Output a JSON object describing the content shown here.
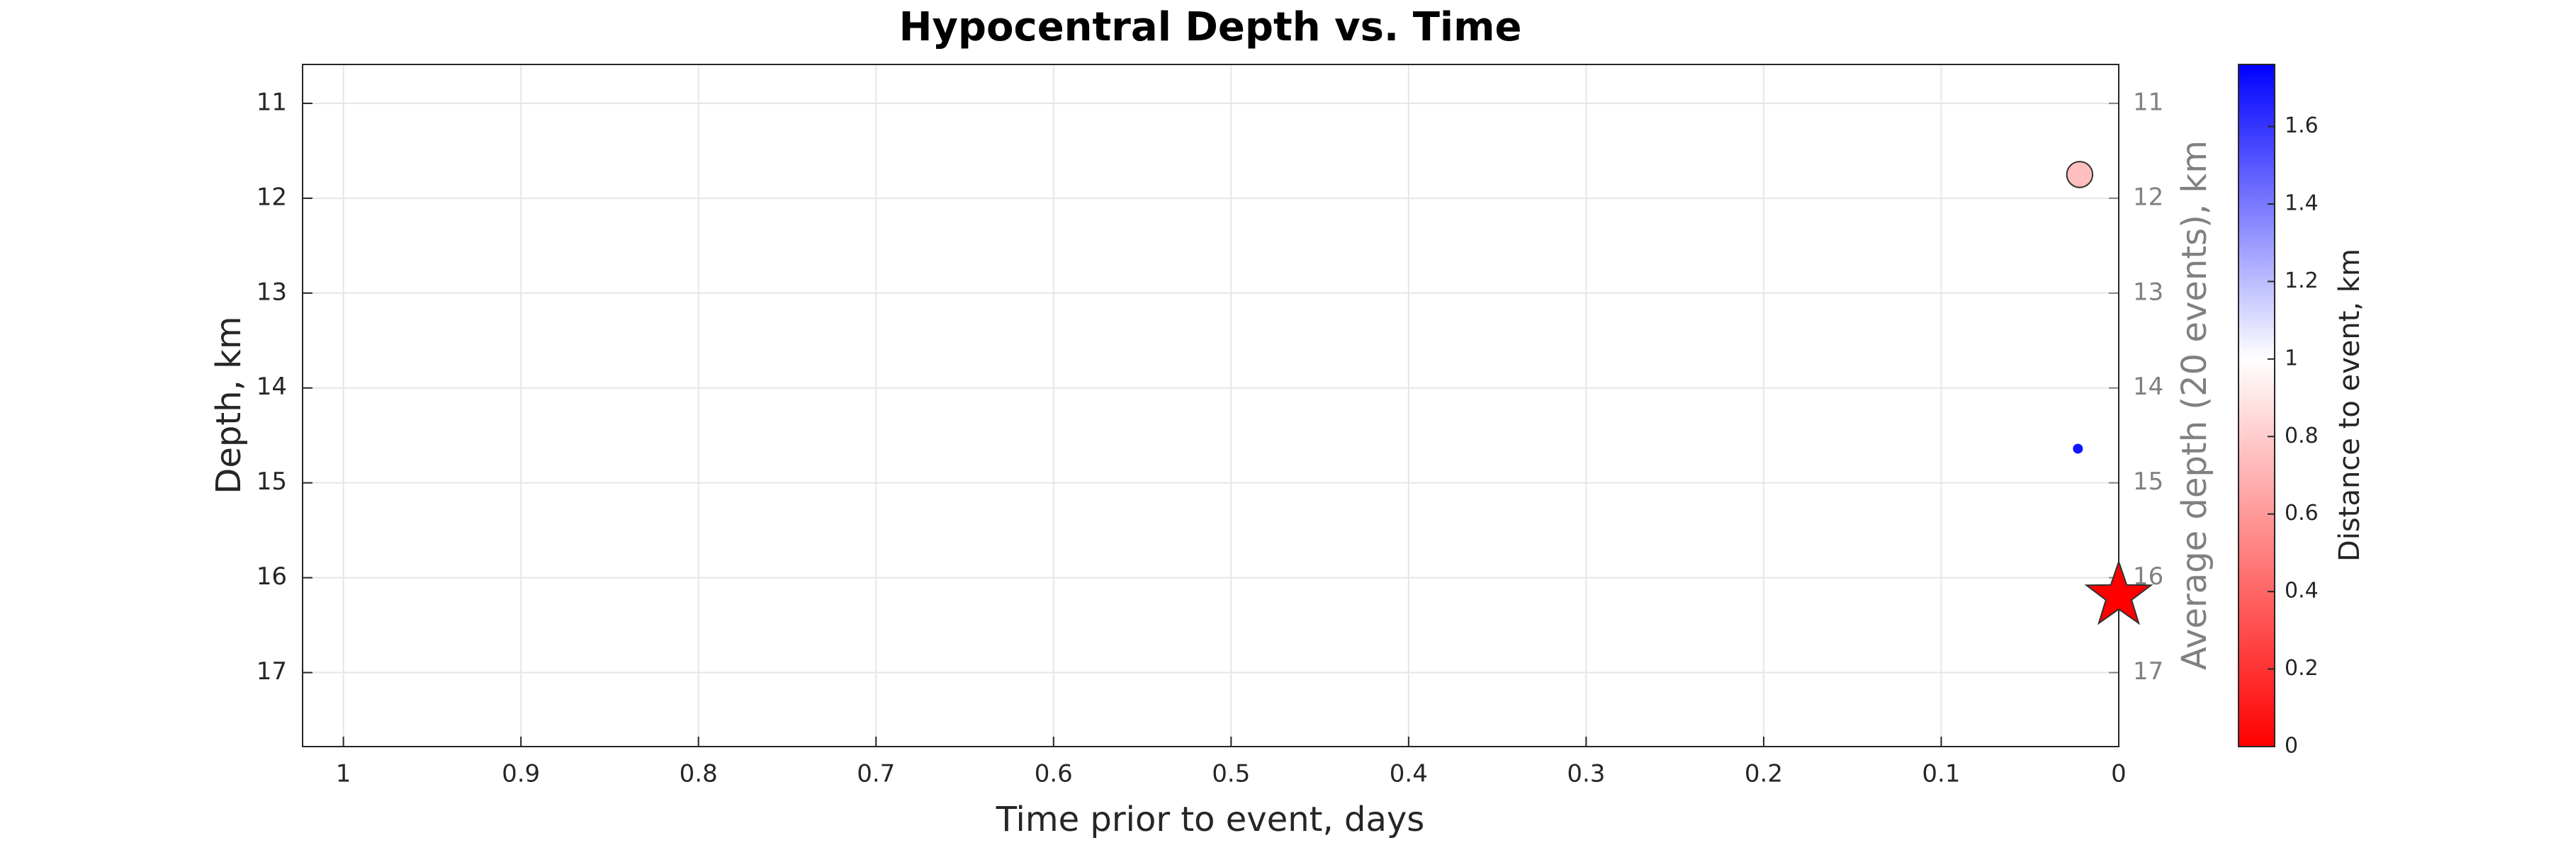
{
  "chart_data": {
    "type": "scatter",
    "title": "Hypocentral Depth vs. Time",
    "x_label": "Time prior to event, days",
    "y_label": "Depth, km",
    "y2_label": "Average depth (20 events), km",
    "xlim": [
      1.023,
      0
    ],
    "xticks": [
      1,
      0.9,
      0.8,
      0.7,
      0.6,
      0.5,
      0.4,
      0.3,
      0.2,
      0.1,
      0
    ],
    "ylim": [
      10.59,
      17.78
    ],
    "yticks": [
      11,
      12,
      13,
      14,
      15,
      16,
      17
    ],
    "y2lim": [
      10.59,
      17.78
    ],
    "y2ticks": [
      11,
      12,
      13,
      14,
      15,
      16,
      17
    ],
    "grid": true,
    "series": [
      {
        "x": [
          0.022,
          0.023
        ],
        "values": [
          11.75,
          14.64
        ],
        "color_values": [
          0.75,
          1.7
        ],
        "sizes": [
          2.6,
          1.0
        ]
      }
    ],
    "mainshock": {
      "x": 0,
      "y": 16.19,
      "color": "#ff0000"
    },
    "colorbar": {
      "label": "Distance to event, km",
      "lim": [
        0,
        1.76
      ],
      "ticks": [
        0,
        0.2,
        0.4,
        0.6,
        0.8,
        1,
        1.2,
        1.4,
        1.6
      ],
      "colormap": [
        {
          "value": 0,
          "color": "#ff0000"
        },
        {
          "value": 1,
          "color": "#ffffff"
        },
        {
          "value": 1.76,
          "color": "#0000ff"
        }
      ]
    }
  }
}
